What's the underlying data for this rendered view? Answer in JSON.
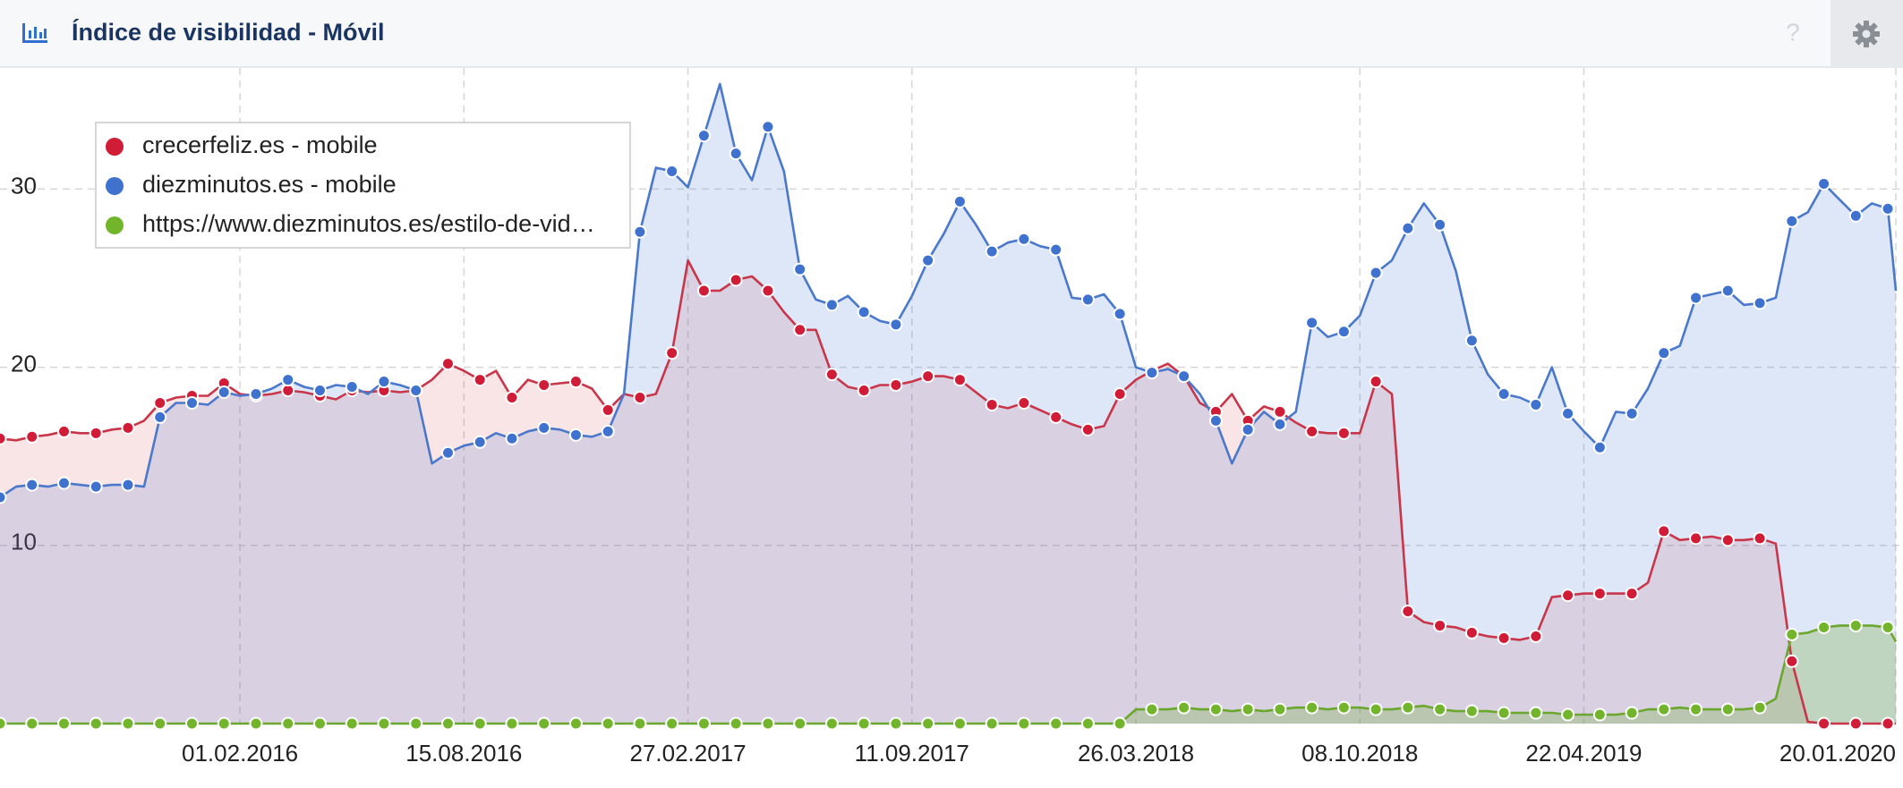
{
  "help_icon": "?",
  "chart_data": {
    "type": "area_line",
    "title": "Índice de visibilidad - Móvil",
    "legend_position": "top-left",
    "grid": true,
    "x": [
      "06.07.2015",
      "20.07.2015",
      "03.08.2015",
      "17.08.2015",
      "31.08.2015",
      "14.09.2015",
      "28.09.2015",
      "12.10.2015",
      "26.10.2015",
      "09.11.2015",
      "23.11.2015",
      "07.12.2015",
      "21.12.2015",
      "04.01.2016",
      "18.01.2016",
      "01.02.2016",
      "15.02.2016",
      "29.02.2016",
      "14.03.2016",
      "28.03.2016",
      "11.04.2016",
      "25.04.2016",
      "09.05.2016",
      "23.05.2016",
      "06.06.2016",
      "20.06.2016",
      "04.07.2016",
      "18.07.2016",
      "01.08.2016",
      "15.08.2016",
      "29.08.2016",
      "12.09.2016",
      "26.09.2016",
      "10.10.2016",
      "24.10.2016",
      "07.11.2016",
      "21.11.2016",
      "05.12.2016",
      "19.12.2016",
      "02.01.2017",
      "16.01.2017",
      "30.01.2017",
      "13.02.2017",
      "27.02.2017",
      "13.03.2017",
      "27.03.2017",
      "10.04.2017",
      "24.04.2017",
      "08.05.2017",
      "22.05.2017",
      "05.06.2017",
      "19.06.2017",
      "03.07.2017",
      "17.07.2017",
      "31.07.2017",
      "14.08.2017",
      "28.08.2017",
      "11.09.2017",
      "25.09.2017",
      "09.10.2017",
      "23.10.2017",
      "06.11.2017",
      "20.11.2017",
      "04.12.2017",
      "18.12.2017",
      "01.01.2018",
      "15.01.2018",
      "29.01.2018",
      "12.02.2018",
      "26.02.2018",
      "12.03.2018",
      "26.03.2018",
      "09.04.2018",
      "23.04.2018",
      "07.05.2018",
      "21.05.2018",
      "04.06.2018",
      "18.06.2018",
      "02.07.2018",
      "16.07.2018",
      "30.07.2018",
      "13.08.2018",
      "27.08.2018",
      "10.09.2018",
      "24.09.2018",
      "08.10.2018",
      "22.10.2018",
      "05.11.2018",
      "19.11.2018",
      "03.12.2018",
      "17.12.2018",
      "31.12.2018",
      "14.01.2019",
      "28.01.2019",
      "11.02.2019",
      "25.02.2019",
      "11.03.2019",
      "25.03.2019",
      "08.04.2019",
      "22.04.2019",
      "06.05.2019",
      "20.05.2019",
      "03.06.2019",
      "17.06.2019",
      "01.07.2019",
      "15.07.2019",
      "29.07.2019",
      "12.08.2019",
      "26.08.2019",
      "09.09.2019",
      "23.09.2019",
      "07.10.2019",
      "21.10.2019",
      "04.11.2019",
      "18.11.2019",
      "02.12.2019",
      "16.12.2019",
      "30.12.2019",
      "13.01.2020",
      "20.01.2020"
    ],
    "series": [
      {
        "name": "crecerfeliz.es - mobile",
        "color": "#c9364a",
        "marker_color": "#d01c36",
        "fill": "rgba(205,45,65,0.13)",
        "values": [
          16.0,
          15.9,
          16.1,
          16.2,
          16.4,
          16.3,
          16.3,
          16.5,
          16.6,
          17.0,
          18.0,
          18.3,
          18.4,
          18.4,
          19.1,
          18.5,
          18.4,
          18.5,
          18.7,
          18.6,
          18.4,
          18.2,
          18.7,
          18.6,
          18.7,
          18.6,
          18.7,
          19.3,
          20.2,
          19.8,
          19.3,
          19.8,
          18.3,
          19.3,
          19.0,
          19.1,
          19.2,
          18.8,
          17.6,
          18.5,
          18.3,
          18.5,
          20.8,
          26.0,
          24.3,
          24.3,
          24.9,
          25.1,
          24.3,
          23.1,
          22.1,
          22.1,
          19.6,
          18.9,
          18.7,
          19.0,
          19.0,
          19.2,
          19.5,
          19.5,
          19.3,
          18.6,
          17.9,
          17.7,
          18.0,
          17.6,
          17.2,
          16.8,
          16.5,
          16.7,
          18.5,
          19.3,
          19.8,
          20.2,
          19.5,
          18.0,
          17.5,
          18.5,
          17.0,
          17.8,
          17.5,
          16.9,
          16.4,
          16.3,
          16.3,
          16.3,
          19.2,
          18.5,
          6.3,
          5.7,
          5.5,
          5.4,
          5.1,
          4.9,
          4.8,
          4.7,
          4.9,
          7.1,
          7.2,
          7.3,
          7.3,
          7.3,
          7.3,
          7.9,
          10.8,
          10.3,
          10.4,
          10.5,
          10.3,
          10.3,
          10.4,
          10.1,
          3.5,
          0.1,
          0,
          0,
          0,
          0,
          0,
          0
        ]
      },
      {
        "name": "diezminutos.es - mobile",
        "color": "#4a78cc",
        "marker_color": "#3f72cf",
        "fill": "rgba(80,130,215,0.19)",
        "values": [
          12.7,
          13.3,
          13.4,
          13.3,
          13.5,
          13.4,
          13.3,
          13.4,
          13.4,
          13.3,
          17.2,
          18.0,
          18.0,
          17.9,
          18.6,
          18.4,
          18.5,
          18.8,
          19.3,
          18.9,
          18.7,
          19.0,
          18.9,
          18.5,
          19.2,
          19.0,
          18.7,
          14.6,
          15.2,
          15.6,
          15.8,
          16.3,
          16.0,
          16.4,
          16.6,
          16.5,
          16.2,
          16.1,
          16.4,
          18.5,
          27.6,
          31.2,
          31.0,
          30.1,
          33.0,
          35.9,
          32.0,
          30.5,
          33.5,
          31.0,
          25.5,
          23.8,
          23.5,
          24.0,
          23.1,
          22.6,
          22.4,
          24.0,
          26.0,
          27.5,
          29.3,
          28.0,
          26.5,
          27.0,
          27.2,
          26.8,
          26.6,
          23.9,
          23.8,
          24.1,
          23.0,
          20.0,
          19.7,
          19.9,
          19.5,
          18.5,
          17.0,
          14.6,
          16.5,
          17.5,
          16.8,
          17.5,
          22.5,
          21.7,
          22.0,
          22.9,
          25.3,
          26.0,
          27.8,
          29.2,
          28.0,
          25.4,
          21.5,
          19.6,
          18.5,
          18.3,
          17.9,
          20.0,
          17.4,
          16.4,
          15.5,
          17.5,
          17.4,
          18.8,
          20.8,
          21.2,
          23.9,
          24.1,
          24.3,
          23.5,
          23.6,
          23.9,
          28.2,
          28.7,
          30.3,
          29.4,
          28.5,
          29.2,
          28.9,
          24.3
        ]
      },
      {
        "name": "https://www.diezminutos.es/estilo-de-vid…",
        "color": "#6aa72d",
        "marker_color": "#72b52c",
        "fill": "rgba(110,170,50,0.28)",
        "values": [
          0,
          0,
          0,
          0,
          0,
          0,
          0,
          0,
          0,
          0,
          0,
          0,
          0,
          0,
          0,
          0,
          0,
          0,
          0,
          0,
          0,
          0,
          0,
          0,
          0,
          0,
          0,
          0,
          0,
          0,
          0,
          0,
          0,
          0,
          0,
          0,
          0,
          0,
          0,
          0,
          0,
          0,
          0,
          0,
          0,
          0,
          0,
          0,
          0,
          0,
          0,
          0,
          0,
          0,
          0,
          0,
          0,
          0,
          0,
          0,
          0,
          0,
          0,
          0,
          0,
          0,
          0,
          0,
          0,
          0,
          0,
          0.8,
          0.8,
          0.8,
          0.9,
          0.8,
          0.8,
          0.7,
          0.8,
          0.7,
          0.8,
          0.9,
          0.9,
          0.8,
          0.9,
          0.9,
          0.8,
          0.8,
          0.9,
          1.0,
          0.8,
          0.7,
          0.7,
          0.7,
          0.6,
          0.6,
          0.6,
          0.6,
          0.5,
          0.5,
          0.5,
          0.5,
          0.6,
          0.8,
          0.8,
          0.9,
          0.8,
          0.8,
          0.8,
          0.8,
          0.9,
          1.4,
          5.0,
          5.1,
          5.4,
          5.5,
          5.5,
          5.5,
          5.4,
          4.6
        ]
      }
    ],
    "xlim": [
      "06.07.2015",
      "20.01.2020"
    ],
    "xticks": [
      "01.02.2016",
      "15.08.2016",
      "27.02.2017",
      "11.09.2017",
      "26.03.2018",
      "08.10.2018",
      "22.04.2019",
      "20.01.2020"
    ],
    "ylim": [
      0,
      37
    ],
    "yticks": [
      10,
      20,
      30
    ]
  }
}
